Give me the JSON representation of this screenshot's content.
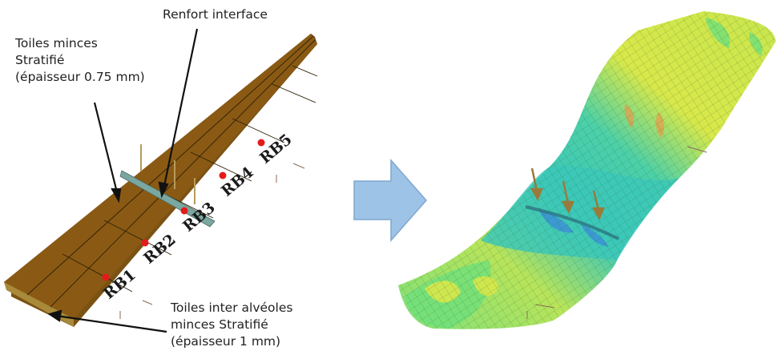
{
  "annotations": {
    "top_left": [
      "Toiles minces",
      "Stratifié",
      "(épaisseur 0.75 mm)"
    ],
    "top_center": "Renfort interface",
    "bottom": [
      "Toiles inter alvéoles",
      "minces Stratifié",
      "(épaisseur 1 mm)"
    ]
  },
  "points": [
    "RB1",
    "RB2",
    "RB3",
    "RB4",
    "RB5"
  ],
  "colors": {
    "panel_brown": "#8a5a14",
    "panel_edge": "#5c3a0a",
    "point_red": "#e41b1b",
    "arrow_fill": "#9dc3e6",
    "arrow_stroke": "#7fa7cf",
    "fem_yellow": "#d8e84a",
    "fem_green": "#6fe07a",
    "fem_cyan": "#3cc8b8",
    "fem_blue": "#3b8fd8"
  },
  "icons": {
    "transition": "right-arrow-icon"
  }
}
